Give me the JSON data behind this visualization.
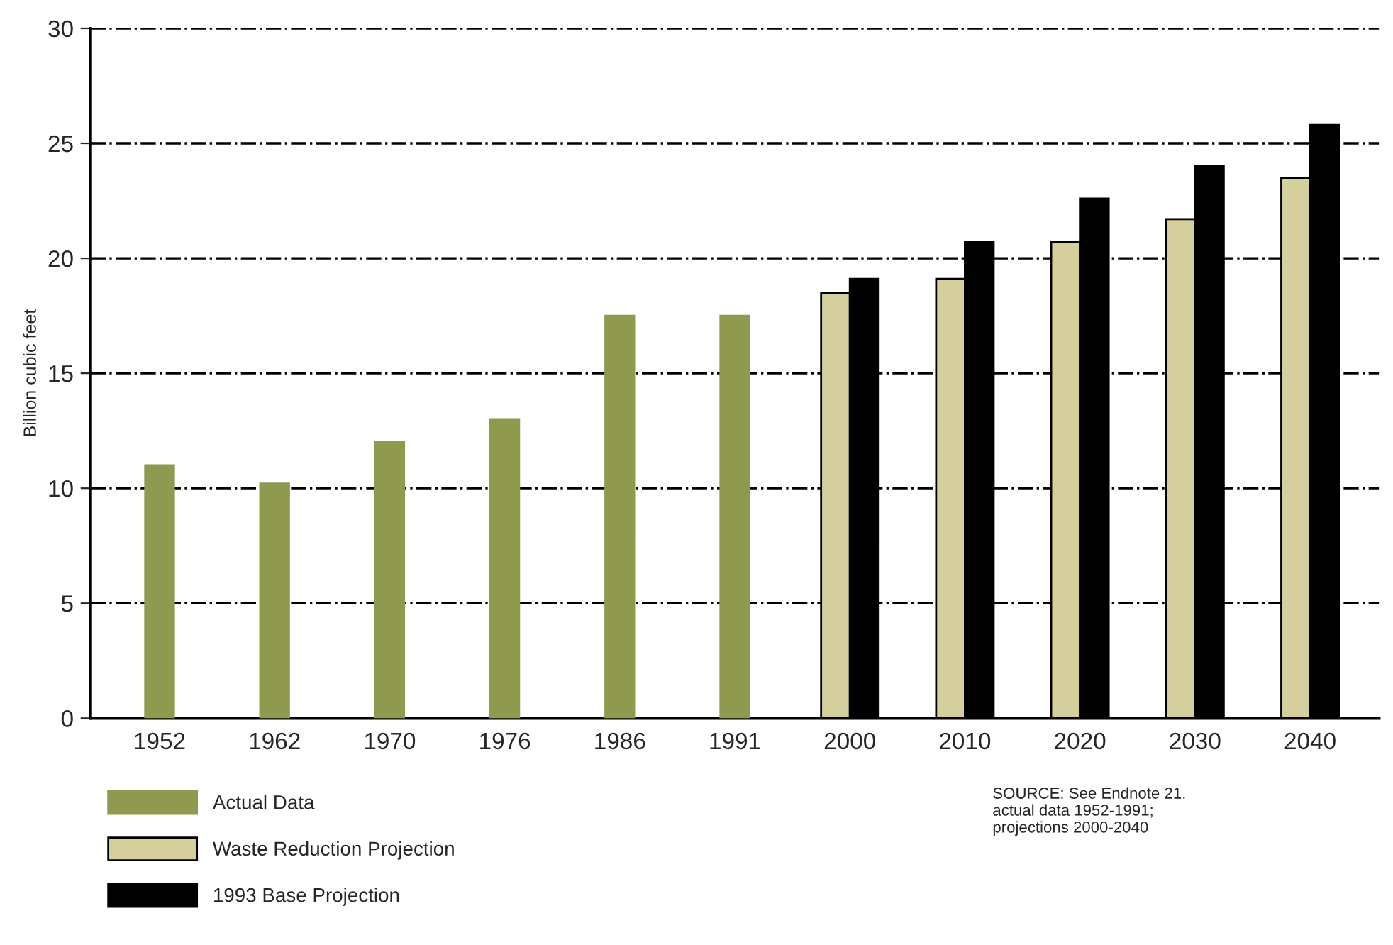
{
  "chart_data": {
    "type": "bar",
    "ylabel": "Billion cubic feet",
    "categories": [
      "1952",
      "1962",
      "1970",
      "1976",
      "1986",
      "1991",
      "2000",
      "2010",
      "2020",
      "2030",
      "2040"
    ],
    "series": [
      {
        "name": "Actual Data",
        "color": "#8f9a4e",
        "values": [
          11.0,
          10.2,
          12.0,
          13.0,
          17.5,
          17.5,
          null,
          null,
          null,
          null,
          null
        ]
      },
      {
        "name": "Waste Reduction Projection",
        "color": "#d4cf9c",
        "values": [
          null,
          null,
          null,
          null,
          null,
          null,
          18.5,
          19.1,
          20.7,
          21.7,
          23.5
        ]
      },
      {
        "name": "1993 Base Projection",
        "color": "#000000",
        "values": [
          null,
          null,
          null,
          null,
          null,
          null,
          19.1,
          20.7,
          22.6,
          24.0,
          25.8
        ]
      }
    ],
    "ylim": [
      0,
      30
    ],
    "yticks": [
      0,
      5,
      10,
      15,
      20,
      25,
      30
    ],
    "grid": "y",
    "legend": "bottom left",
    "annotations": [
      "SOURCE: See Endnote 21.\nactual data 1952-1991;\nprojections 2000-2040"
    ]
  }
}
